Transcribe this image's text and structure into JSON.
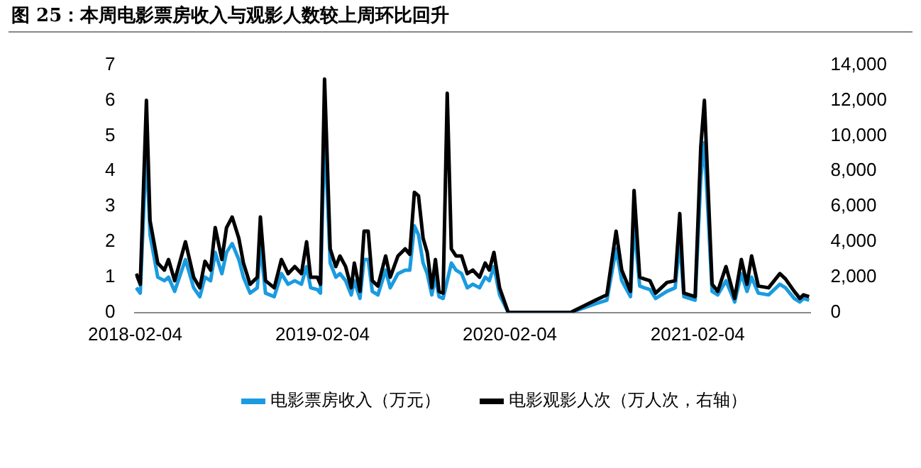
{
  "chart_data": {
    "type": "line",
    "title": "图 25：本周电影票房收入与观影人数较上周环比回升",
    "x": [
      "2018-02-06",
      "2018-02-14",
      "2018-02-26",
      "2018-03-05",
      "2018-03-20",
      "2018-04-02",
      "2018-04-10",
      "2018-04-22",
      "2018-05-13",
      "2018-05-29",
      "2018-06-10",
      "2018-06-20",
      "2018-07-01",
      "2018-07-10",
      "2018-07-23",
      "2018-08-01",
      "2018-08-12",
      "2018-08-25",
      "2018-09-03",
      "2018-09-16",
      "2018-09-30",
      "2018-10-06",
      "2018-10-16",
      "2018-11-02",
      "2018-11-16",
      "2018-11-29",
      "2018-12-12",
      "2018-12-25",
      "2019-01-04",
      "2019-01-12",
      "2019-01-25",
      "2019-01-31",
      "2019-02-08",
      "2019-02-19",
      "2019-03-02",
      "2019-03-10",
      "2019-03-21",
      "2019-04-01",
      "2019-04-07",
      "2019-04-18",
      "2019-04-26",
      "2019-05-04",
      "2019-05-12",
      "2019-05-23",
      "2019-06-07",
      "2019-06-16",
      "2019-07-01",
      "2019-07-15",
      "2019-07-24",
      "2019-08-02",
      "2019-08-10",
      "2019-08-19",
      "2019-08-27",
      "2019-09-05",
      "2019-09-12",
      "2019-09-19",
      "2019-09-27",
      "2019-10-05",
      "2019-10-13",
      "2019-10-22",
      "2019-11-02",
      "2019-11-13",
      "2019-11-24",
      "2019-12-07",
      "2019-12-18",
      "2019-12-26",
      "2020-01-04",
      "2020-01-15",
      "2020-02-01",
      "2020-06-01",
      "2020-07-20",
      "2020-08-11",
      "2020-08-29",
      "2020-09-09",
      "2020-09-26",
      "2020-10-03",
      "2020-10-14",
      "2020-10-23",
      "2020-11-03",
      "2020-11-14",
      "2020-12-06",
      "2020-12-22",
      "2020-12-31",
      "2021-01-08",
      "2021-01-30",
      "2021-02-10",
      "2021-02-17",
      "2021-03-04",
      "2021-03-15",
      "2021-03-31",
      "2021-04-17",
      "2021-04-30",
      "2021-05-11",
      "2021-05-20",
      "2021-06-02",
      "2021-06-22",
      "2021-07-14",
      "2021-07-25",
      "2021-08-11",
      "2021-08-22",
      "2021-08-29",
      "2021-09-09"
    ],
    "series": [
      {
        "name": "电影票房收入（万元）",
        "color": "#1a9be0",
        "values": [
          0.7,
          0.55,
          4.7,
          2.2,
          1.0,
          0.9,
          1.0,
          0.6,
          1.5,
          0.7,
          0.45,
          1.0,
          0.9,
          1.7,
          1.1,
          1.7,
          1.95,
          1.5,
          1.0,
          0.55,
          0.7,
          1.9,
          0.55,
          0.45,
          1.1,
          0.8,
          0.9,
          0.8,
          1.3,
          0.7,
          0.65,
          0.55,
          5.2,
          1.4,
          1.0,
          1.1,
          0.9,
          0.5,
          0.9,
          0.4,
          1.5,
          1.5,
          0.6,
          0.5,
          1.2,
          0.7,
          1.1,
          1.2,
          1.2,
          2.45,
          2.2,
          1.4,
          1.1,
          0.5,
          1.0,
          0.45,
          0.4,
          null,
          1.4,
          1.2,
          1.1,
          0.7,
          0.8,
          0.7,
          1.0,
          0.9,
          1.3,
          0.5,
          0,
          0,
          0.25,
          0.35,
          1.8,
          0.9,
          0.45,
          2.5,
          0.75,
          0.7,
          0.65,
          0.4,
          0.6,
          0.7,
          2.0,
          0.45,
          0.35,
          3.8,
          4.8,
          0.6,
          0.5,
          0.9,
          0.3,
          1.1,
          0.6,
          1.0,
          0.55,
          0.5,
          0.8,
          0.7,
          0.4,
          0.3,
          0.4,
          0.35
        ]
      },
      {
        "name": "电影观影人次（万人次，右轴）",
        "color": "#000000",
        "axis": "y2",
        "values": [
          2200,
          1600,
          12000,
          5200,
          2800,
          2400,
          3000,
          1800,
          4000,
          2000,
          1400,
          2900,
          2400,
          4800,
          3000,
          4800,
          5400,
          4200,
          2800,
          1600,
          2000,
          5400,
          1800,
          1400,
          3000,
          2200,
          2600,
          2200,
          4000,
          2000,
          2000,
          1600,
          13200,
          3600,
          2600,
          3200,
          2600,
          1400,
          2800,
          1200,
          4600,
          4600,
          1800,
          1500,
          3200,
          2000,
          3200,
          3600,
          3300,
          6800,
          6600,
          4200,
          3400,
          1400,
          3000,
          1200,
          1100,
          12400,
          3600,
          3200,
          3200,
          2200,
          2400,
          2000,
          2800,
          2400,
          3400,
          1400,
          0,
          0,
          700,
          1000,
          4600,
          2400,
          1200,
          6900,
          2000,
          1900,
          1800,
          1100,
          1700,
          1800,
          5600,
          1100,
          900,
          9400,
          12000,
          1600,
          1200,
          2600,
          800,
          3000,
          1600,
          3200,
          1500,
          1400,
          2200,
          1900,
          1200,
          800,
          1000,
          900
        ]
      }
    ],
    "xlim": [
      "2018-02-04",
      "2021-09-12"
    ],
    "xticks": [
      "2018-02-04",
      "2019-02-04",
      "2020-02-04",
      "2021-02-04"
    ],
    "ylim": [
      0,
      7
    ],
    "yticks": [
      0,
      1,
      2,
      3,
      4,
      5,
      6,
      7
    ],
    "y2lim": [
      0,
      14000
    ],
    "y2ticks": [
      0,
      {
        "value": 2000,
        "label": "2,000"
      },
      {
        "value": 4000,
        "label": "4,000"
      },
      {
        "value": 6000,
        "label": "6,000"
      },
      {
        "value": 8000,
        "label": "8,000"
      },
      {
        "value": 10000,
        "label": "10,000"
      },
      {
        "value": 12000,
        "label": "12,000"
      },
      {
        "value": 14000,
        "label": "14,000"
      }
    ],
    "grid": false,
    "legend": "bottom",
    "marker": "none",
    "line_style": "solid"
  }
}
